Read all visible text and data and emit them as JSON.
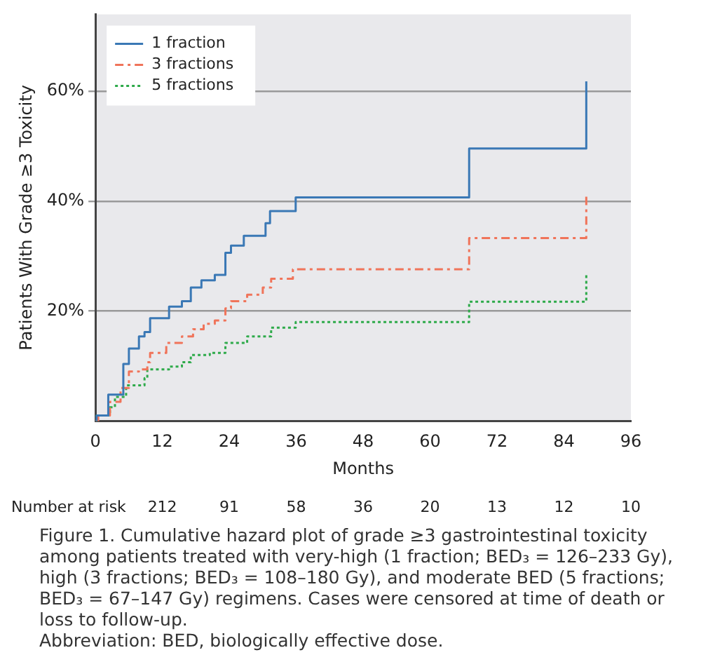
{
  "chart_data": {
    "type": "step",
    "xlabel": "Months",
    "ylabel": "Patients With Grade ≥3 Toxicity",
    "xlim": [
      0,
      96
    ],
    "xticks": [
      0,
      12,
      24,
      36,
      48,
      60,
      72,
      84,
      96
    ],
    "ylim": [
      0,
      74
    ],
    "yticks": [
      {
        "value": 20,
        "label": "20%"
      },
      {
        "value": 40,
        "label": "40%"
      },
      {
        "value": 60,
        "label": "60%"
      }
    ],
    "grid": "y",
    "legend": "top left",
    "marker": "none",
    "series": [
      {
        "name": "1 fraction",
        "color": "#3a78b5",
        "line_style": "solid",
        "x": [
          0,
          0.2,
          2.3,
          5,
          6,
          7.8,
          8.8,
          9.8,
          13.2,
          15.5,
          17.1,
          19,
          21.4,
          23.3,
          24.3,
          26.6,
          30.5,
          31.3,
          35.9,
          67,
          88,
          88
        ],
        "values": [
          0,
          1,
          4.8,
          10.4,
          13.2,
          15.4,
          16.2,
          18.7,
          20.8,
          21.8,
          24.3,
          25.6,
          26.6,
          30.6,
          31.9,
          33.7,
          36,
          38.2,
          40.7,
          49.6,
          49.6,
          61.8
        ]
      },
      {
        "name": "3 fractions",
        "color": "#f0745a",
        "line_style": "dashed",
        "x": [
          0,
          0.5,
          2.6,
          4.5,
          6,
          7.8,
          9.3,
          9.8,
          12.7,
          15.5,
          17.5,
          19.4,
          21.4,
          23.3,
          24.3,
          27.2,
          30,
          31.5,
          35.4,
          67,
          88,
          88
        ],
        "values": [
          0,
          1,
          3.5,
          6,
          9,
          9.4,
          10.7,
          12.4,
          14.2,
          15.4,
          16.7,
          17.7,
          18.3,
          20.5,
          21.8,
          23,
          24.3,
          25.9,
          27.6,
          33.3,
          33.3,
          41.5
        ]
      },
      {
        "name": "5 fractions",
        "color": "#2eaa4a",
        "line_style": "dotted",
        "x": [
          0,
          0.2,
          2.6,
          3.5,
          5.5,
          8.8,
          9.3,
          13.2,
          15.5,
          17.1,
          20.5,
          23.3,
          27.2,
          31.5,
          35.9,
          67,
          88,
          88
        ],
        "values": [
          0,
          1,
          2.5,
          4.4,
          6.5,
          7.8,
          9.4,
          9.9,
          10.7,
          12,
          12.4,
          14.2,
          15.4,
          17,
          18,
          21.7,
          21.7,
          26.8
        ]
      }
    ],
    "annotations": [
      "Number at risk",
      "212",
      "91",
      "58",
      "36",
      "20",
      "13",
      "12",
      "10",
      "Figure 1. Cumulative hazard plot of grade ≥3 gastrointestinal toxicity among patients treated with very-high (1 fraction; BED₃ = 126–233 Gy), high (3 fractions; BED₃ = 108–180 Gy), and moderate BED (5 fractions; BED₃ = 67–147 Gy) regimens. Cases were censored at time of death or loss to follow-up.",
      "Abbreviation: BED, biologically effective dose."
    ]
  }
}
